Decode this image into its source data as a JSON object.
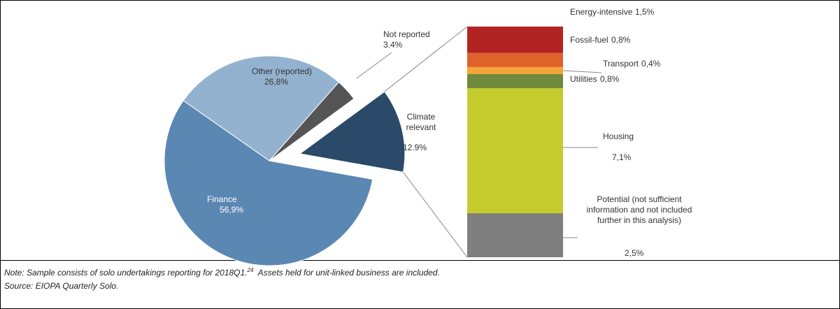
{
  "chart_data": [
    {
      "type": "pie",
      "categories": [
        "Other (reported)",
        "Not reported",
        "Climate relevant",
        "Finance"
      ],
      "values": [
        26.8,
        3.4,
        12.9,
        56.9
      ],
      "value_labels": [
        "26,8%",
        "3.4%",
        "12.9%",
        "56,9%"
      ],
      "colors": [
        "#93b2cf",
        "#555555",
        "#2b4a6a",
        "#5b87b3"
      ]
    },
    {
      "type": "stacked-bar",
      "categories": [
        "Energy-intensive",
        "Fossil-fuel",
        "Transport",
        "Utilities",
        "Housing",
        "Potential (not sufficient information and not included further in this analysis)"
      ],
      "values": [
        1.5,
        0.8,
        0.4,
        0.8,
        7.1,
        2.5
      ],
      "value_labels": [
        "1,5%",
        "0,8%",
        "0,4%",
        "0,8%",
        "7,1%",
        "2,5%"
      ],
      "colors": [
        "#b22424",
        "#e0622b",
        "#f4a53a",
        "#6f8a3c",
        "#c4cc2e",
        "#7f7f7f"
      ]
    }
  ],
  "note": {
    "text": "Note: Sample consists of solo undertakings reporting for 2018Q1.",
    "superscript": "24",
    "text2": "Assets held for unit-linked business are included.",
    "source": "Source: EIOPA Quarterly Solo."
  }
}
